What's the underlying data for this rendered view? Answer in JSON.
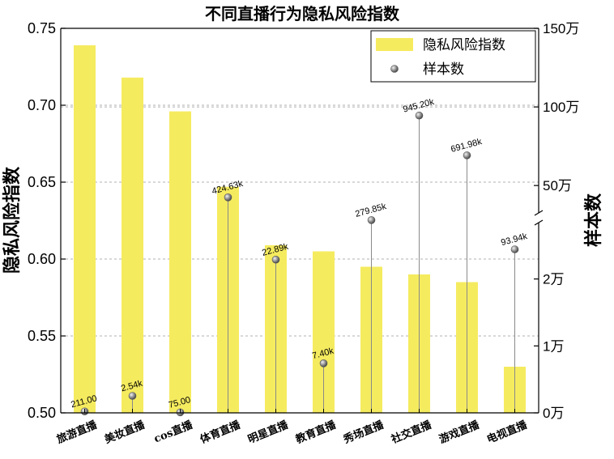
{
  "chart_data": {
    "type": "bar",
    "title": "不同直播行为隐私风险指数",
    "categories": [
      "旅游直播",
      "美妆直播",
      "cos直播",
      "体育直播",
      "明星直播",
      "教育直播",
      "秀场直播",
      "社交直播",
      "游戏直播",
      "电视直播"
    ],
    "ylabel": "隐私风险指数",
    "y2label": "样本数",
    "ylim": [
      0.5,
      0.75
    ],
    "yticks": [
      "0.50",
      "0.55",
      "0.60",
      "0.65",
      "0.70",
      "0.75"
    ],
    "y2_axis": {
      "break": true,
      "lower_ticks": [
        "0万",
        "1万",
        "2万"
      ],
      "upper_ticks": [
        "50万",
        "100万",
        "150万"
      ]
    },
    "series": [
      {
        "name": "隐私风险指数",
        "kind": "bar",
        "color": "#f5eb5f",
        "values": [
          0.739,
          0.718,
          0.696,
          0.647,
          0.609,
          0.605,
          0.595,
          0.59,
          0.585,
          0.53
        ]
      },
      {
        "name": "样本数",
        "kind": "lollipop",
        "color": "#8a8a8a",
        "values": [
          211,
          2540,
          75,
          424630,
          22890,
          7400,
          279850,
          945200,
          691980,
          93940
        ],
        "labels": [
          "211.00",
          "2.54k",
          "75.00",
          "424.63k",
          "22.89k",
          "7.40k",
          "279.85k",
          "945.20k",
          "691.98k",
          "93.94k"
        ]
      }
    ],
    "legend": {
      "position": "top-right",
      "entries": [
        "隐私风险指数",
        "样本数"
      ]
    },
    "grid": "dashed horizontal"
  }
}
